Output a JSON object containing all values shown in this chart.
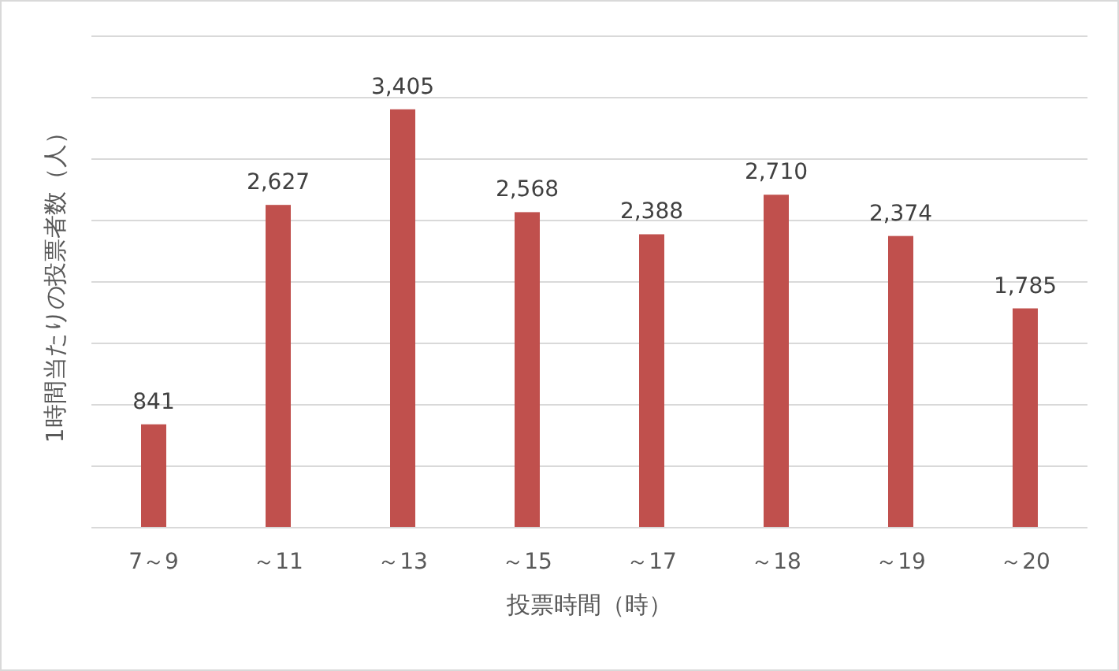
{
  "chart_data": {
    "type": "bar",
    "xlabel": "投票時間（時）",
    "ylabel": "1時間当たりの投票者数（人）",
    "categories": [
      "7～9",
      "～11",
      "～13",
      "～15",
      "～17",
      "～18",
      "～19",
      "～20"
    ],
    "values": [
      841,
      2627,
      3405,
      2568,
      2388,
      2710,
      2374,
      1785
    ],
    "value_labels": [
      "841",
      "2,627",
      "3,405",
      "2,568",
      "2,388",
      "2,710",
      "2,374",
      "1,785"
    ],
    "color": "#c0504d",
    "ylim": [
      0,
      4000
    ],
    "yticks": [
      {
        "value": 0,
        "label": null
      },
      {
        "value": 500,
        "label": null
      },
      {
        "value": 1000,
        "label": null
      },
      {
        "value": 1500,
        "label": null
      },
      {
        "value": 2000,
        "label": null
      },
      {
        "value": 2500,
        "label": null
      },
      {
        "value": 3000,
        "label": null
      },
      {
        "value": 3500,
        "label": null
      },
      {
        "value": 4000,
        "label": null
      }
    ],
    "grid": "y",
    "tick_labels": "x"
  }
}
